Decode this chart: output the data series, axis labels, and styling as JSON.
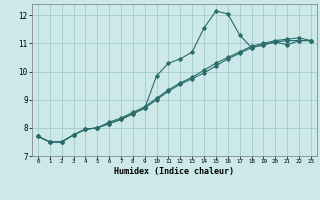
{
  "xlabel": "Humidex (Indice chaleur)",
  "background_color": "#cce8e8",
  "grid_color": "#aacece",
  "line_color": "#2a6b6b",
  "xlim": [
    -0.5,
    23.5
  ],
  "ylim": [
    7.0,
    12.4
  ],
  "xticks": [
    0,
    1,
    2,
    3,
    4,
    5,
    6,
    7,
    8,
    9,
    10,
    11,
    12,
    13,
    14,
    15,
    16,
    17,
    18,
    19,
    20,
    21,
    22,
    23
  ],
  "yticks": [
    7,
    8,
    9,
    10,
    11,
    12
  ],
  "x": [
    0,
    1,
    2,
    3,
    4,
    5,
    6,
    7,
    8,
    9,
    10,
    11,
    12,
    13,
    14,
    15,
    16,
    17,
    18,
    19,
    20,
    21,
    22,
    23
  ],
  "line1_y": [
    7.7,
    7.5,
    7.5,
    7.75,
    7.95,
    8.0,
    8.15,
    8.3,
    8.5,
    8.7,
    9.85,
    10.3,
    10.45,
    10.7,
    11.55,
    12.15,
    12.05,
    11.3,
    10.85,
    10.95,
    11.05,
    10.95,
    11.1,
    11.1
  ],
  "line2_y": [
    7.7,
    7.5,
    7.5,
    7.75,
    7.95,
    8.0,
    8.15,
    8.3,
    8.5,
    8.7,
    9.0,
    9.3,
    9.55,
    9.75,
    9.95,
    10.2,
    10.45,
    10.65,
    10.85,
    10.95,
    11.05,
    11.1,
    11.1,
    11.1
  ],
  "line3_y": [
    7.7,
    7.5,
    7.5,
    7.75,
    7.95,
    8.0,
    8.2,
    8.35,
    8.55,
    8.75,
    9.05,
    9.35,
    9.6,
    9.8,
    10.05,
    10.3,
    10.5,
    10.7,
    10.9,
    11.0,
    11.1,
    11.15,
    11.2,
    11.1
  ]
}
